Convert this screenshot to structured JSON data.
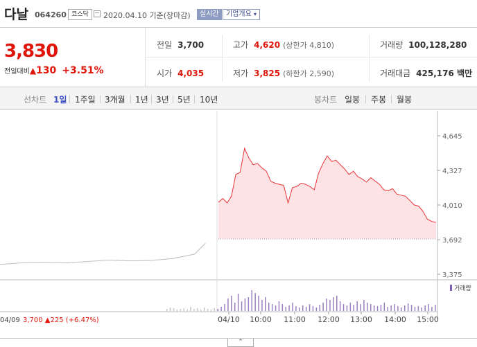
{
  "header": {
    "name": "다날",
    "code": "064260",
    "market": "코스닥",
    "date": "2020.04.10 기준(장마감)",
    "realtime": "실시간",
    "overview": "기업개요"
  },
  "price": {
    "current": "3,830",
    "change_label": "전일대비",
    "change_arrow": "▲",
    "change_value": "130",
    "change_pct": "+3.51%"
  },
  "stats": {
    "prev_label": "전일",
    "prev": "3,700",
    "high_label": "고가",
    "high": "4,620",
    "high_limit": "(상한가 4,810)",
    "volume_label": "거래량",
    "volume": "100,128,280",
    "open_label": "시가",
    "open": "4,035",
    "low_label": "저가",
    "low": "3,825",
    "low_limit": "(하한가 2,590)",
    "amount_label": "거래대금",
    "amount": "425,176 백만"
  },
  "tabs": {
    "line_label": "선차트",
    "periods": [
      "1일",
      "1주일",
      "3개월",
      "1년",
      "3년",
      "5년",
      "10년"
    ],
    "candle_label": "봉차트",
    "candles": [
      "일봉",
      "주봉",
      "월봉"
    ]
  },
  "chart_data": {
    "type": "line",
    "yticks": [
      "4,645",
      "4,327",
      "4,010",
      "3,692",
      "3,375"
    ],
    "ylim": [
      3375,
      4645
    ],
    "xticks": [
      "04/10",
      "10:00",
      "11:00",
      "12:00",
      "13:00",
      "14:00",
      "15:00"
    ],
    "prev_close": 3700,
    "volume_legend": "거래량",
    "prev_day_label": "04/09",
    "prev_day_summary": "3,700 ▲225 (+6.47%)",
    "series": [
      {
        "name": "04/09",
        "x": [
          0,
          10,
          20,
          30,
          40,
          50,
          60,
          70,
          80,
          90,
          95
        ],
        "values": [
          3465,
          3480,
          3485,
          3480,
          3492,
          3505,
          3498,
          3502,
          3520,
          3560,
          3660
        ]
      },
      {
        "name": "04/10",
        "x": [
          0,
          2,
          4,
          6,
          8,
          10,
          12,
          14,
          16,
          18,
          20,
          22,
          24,
          26,
          28,
          30,
          32,
          34,
          36,
          38,
          40,
          42,
          44,
          46,
          48,
          50,
          52,
          54,
          56,
          58,
          60,
          62,
          64,
          66,
          68,
          70,
          72,
          74,
          76,
          78,
          80,
          82,
          84,
          86,
          88,
          90,
          92,
          94,
          96,
          98,
          100
        ],
        "values": [
          4035,
          4070,
          4030,
          4090,
          4290,
          4310,
          4530,
          4440,
          4380,
          4390,
          4350,
          4320,
          4230,
          4210,
          4200,
          4190,
          4030,
          4170,
          4180,
          4210,
          4200,
          4180,
          4150,
          4300,
          4390,
          4460,
          4410,
          4420,
          4380,
          4340,
          4290,
          4320,
          4270,
          4250,
          4220,
          4260,
          4230,
          4200,
          4150,
          4140,
          4160,
          4110,
          4100,
          4090,
          4050,
          4010,
          4000,
          3950,
          3880,
          3860,
          3850
        ]
      }
    ]
  }
}
